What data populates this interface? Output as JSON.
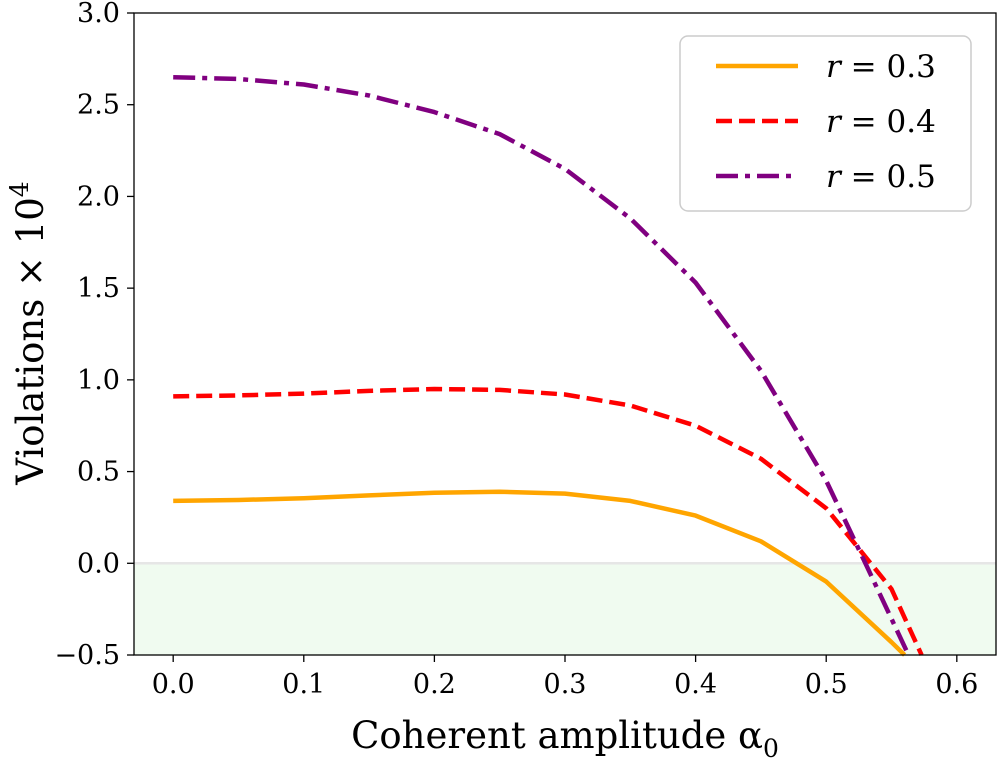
{
  "chart_data": {
    "type": "line",
    "title": "",
    "xlabel": "Coherent amplitude α",
    "xlabel_subscript": "0",
    "ylabel": "Violations × 10",
    "ylabel_superscript": "4",
    "xlim": [
      -0.03,
      0.63
    ],
    "ylim": [
      -0.5,
      3.0
    ],
    "xticks": [
      0.0,
      0.1,
      0.2,
      0.3,
      0.4,
      0.5,
      0.6
    ],
    "xtick_labels": [
      "0.0",
      "0.1",
      "0.2",
      "0.3",
      "0.4",
      "0.5",
      "0.6"
    ],
    "yticks": [
      -0.5,
      0.0,
      0.5,
      1.0,
      1.5,
      2.0,
      2.5,
      3.0
    ],
    "ytick_labels": [
      "−0.5",
      "0.0",
      "0.5",
      "1.0",
      "1.5",
      "2.0",
      "2.5",
      "3.0"
    ],
    "grid": false,
    "legend_position": "top-right",
    "shaded_region": {
      "y_from": -0.5,
      "y_to": 0.0,
      "color": "#f0fbf0"
    },
    "zero_line_color": "#e6e6e6",
    "series": [
      {
        "name": "r = 0.3",
        "var": "r",
        "value": "0.3",
        "color": "#ffa500",
        "style": "solid",
        "x": [
          0.0,
          0.05,
          0.1,
          0.15,
          0.2,
          0.25,
          0.3,
          0.35,
          0.4,
          0.45,
          0.5,
          0.55,
          0.56
        ],
        "y": [
          0.34,
          0.345,
          0.355,
          0.37,
          0.385,
          0.39,
          0.38,
          0.34,
          0.26,
          0.12,
          -0.1,
          -0.43,
          -0.5
        ]
      },
      {
        "name": "r = 0.4",
        "var": "r",
        "value": "0.4",
        "color": "#ff0000",
        "style": "dashed",
        "x": [
          0.0,
          0.05,
          0.1,
          0.15,
          0.2,
          0.25,
          0.3,
          0.35,
          0.4,
          0.45,
          0.5,
          0.55,
          0.573
        ],
        "y": [
          0.91,
          0.915,
          0.925,
          0.94,
          0.95,
          0.945,
          0.92,
          0.86,
          0.75,
          0.57,
          0.3,
          -0.14,
          -0.5
        ]
      },
      {
        "name": "r = 0.5",
        "var": "r",
        "value": "0.5",
        "color": "#800080",
        "style": "dashdot",
        "x": [
          0.0,
          0.05,
          0.1,
          0.15,
          0.2,
          0.25,
          0.3,
          0.35,
          0.4,
          0.45,
          0.5,
          0.53,
          0.563
        ],
        "y": [
          2.65,
          2.64,
          2.61,
          2.55,
          2.46,
          2.34,
          2.15,
          1.88,
          1.53,
          1.05,
          0.45,
          0.0,
          -0.5
        ]
      }
    ]
  }
}
